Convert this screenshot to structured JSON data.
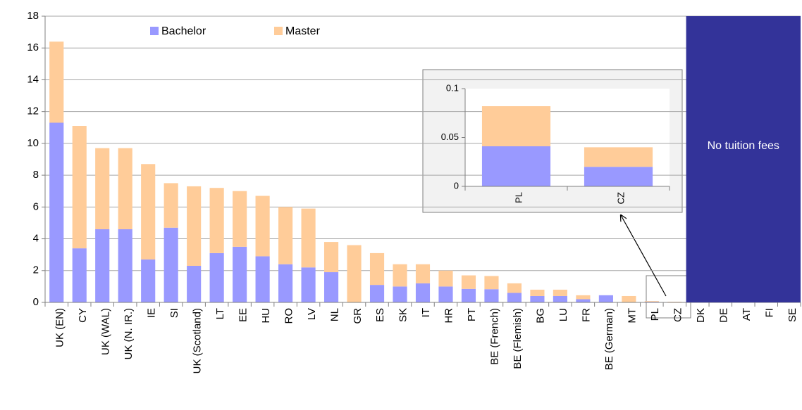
{
  "chart_data": [
    {
      "type": "stacked_bar",
      "categories": [
        "UK (EN)",
        "CY",
        "UK (WAL)",
        "UK (N. IR.)",
        "IE",
        "SI",
        "UK (Scotland)",
        "LT",
        "EE",
        "HU",
        "RO",
        "LV",
        "NL",
        "GR",
        "ES",
        "SK",
        "IT",
        "HR",
        "PT",
        "BE (French)",
        "BE (Flemish)",
        "BG",
        "LU",
        "FR",
        "BE (German)",
        "MT",
        "PL",
        "CZ",
        "DK",
        "DE",
        "AT",
        "FI",
        "SE"
      ],
      "series": [
        {
          "name": "Bachelor",
          "color": "#9999ff",
          "values": [
            11.3,
            3.4,
            4.6,
            4.6,
            2.7,
            4.7,
            2.3,
            3.1,
            3.5,
            2.9,
            2.4,
            2.2,
            1.9,
            0,
            1.1,
            1.0,
            1.2,
            1.0,
            0.85,
            0.83,
            0.6,
            0.4,
            0.4,
            0.2,
            0.45,
            0,
            0.041,
            0.02,
            null,
            null,
            null,
            null,
            null
          ]
        },
        {
          "name": "Master",
          "color": "#ffcc99",
          "values": [
            5.1,
            7.7,
            5.1,
            5.1,
            6.0,
            2.8,
            5.0,
            4.1,
            3.5,
            3.8,
            3.6,
            3.7,
            1.9,
            3.6,
            2.0,
            1.4,
            1.2,
            1.0,
            0.85,
            0.83,
            0.6,
            0.4,
            0.4,
            0.25,
            0,
            0.4,
            0.041,
            0.02,
            null,
            null,
            null,
            null,
            null
          ]
        }
      ],
      "ylim": [
        0,
        18
      ],
      "yticks": [
        0,
        2,
        4,
        6,
        8,
        10,
        12,
        14,
        16,
        18
      ],
      "grid": true,
      "legend": "top",
      "annotation": "No tuition fees",
      "annotation_color": "#333399"
    },
    {
      "type": "stacked_bar",
      "categories": [
        "PL",
        "CZ"
      ],
      "series": [
        {
          "name": "Bachelor",
          "color": "#9999ff",
          "values": [
            0.041,
            0.02
          ]
        },
        {
          "name": "Master",
          "color": "#ffcc99",
          "values": [
            0.041,
            0.02
          ]
        }
      ],
      "ylim": [
        0,
        0.1
      ],
      "yticks": [
        0,
        0.05,
        0.1
      ],
      "grid": false
    }
  ]
}
